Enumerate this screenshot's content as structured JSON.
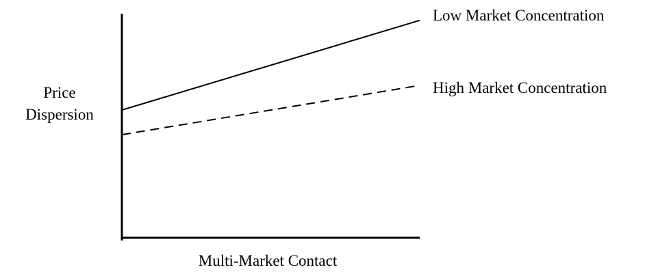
{
  "chart_data": {
    "type": "line",
    "title": "",
    "xlabel": "Multi-Market Contact",
    "ylabel_lines": [
      "Price",
      "Dispersion"
    ],
    "xlim": [
      0,
      1
    ],
    "ylim": [
      0,
      1
    ],
    "grid": false,
    "legend": "inline-right",
    "tick_labels": false,
    "series": [
      {
        "name": "Low Market Concentration",
        "style": "solid",
        "color": "#000000",
        "x": [
          0,
          1
        ],
        "y": [
          0.57,
          0.97
        ]
      },
      {
        "name": "High Market Concentration",
        "style": "dashed",
        "color": "#000000",
        "x": [
          0,
          1
        ],
        "y": [
          0.46,
          0.68
        ]
      }
    ]
  }
}
